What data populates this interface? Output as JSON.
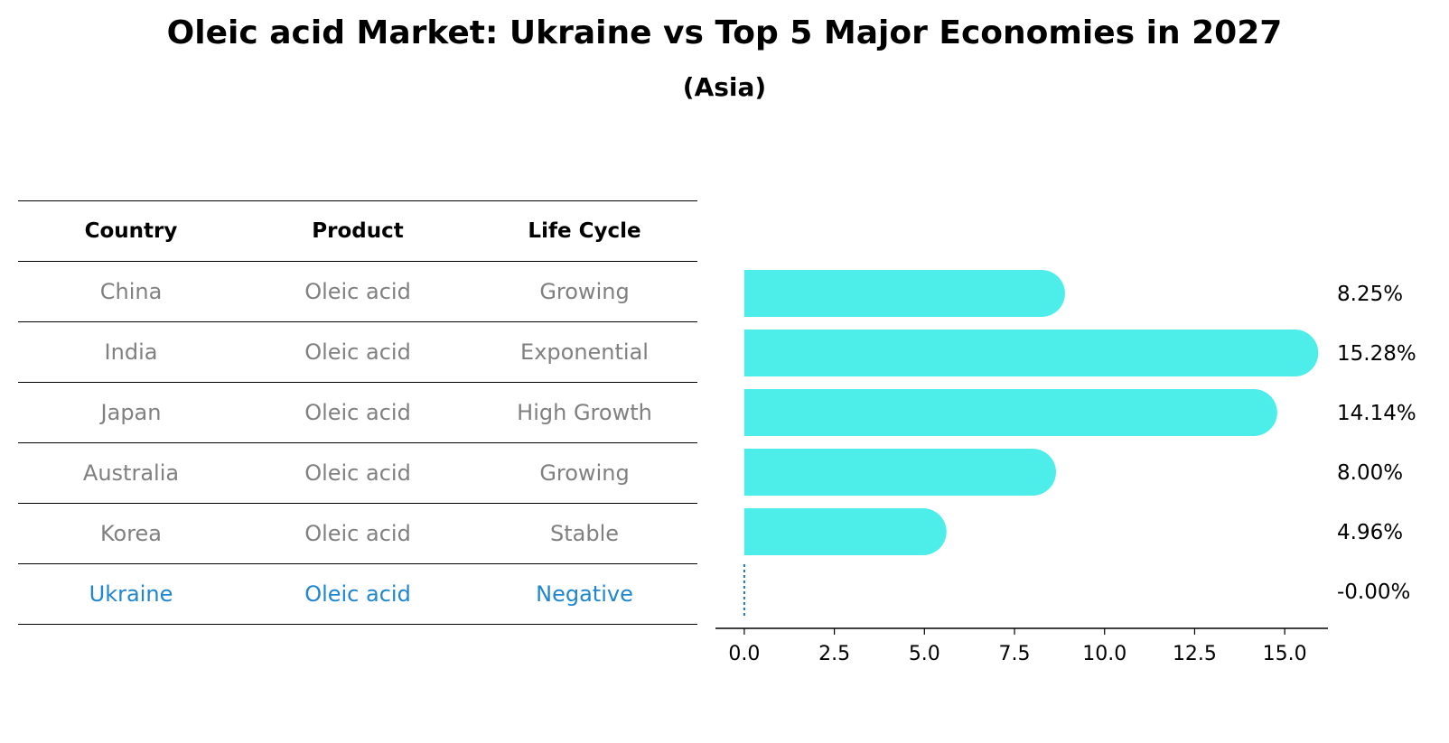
{
  "title": "Oleic acid Market: Ukraine vs Top 5 Major Economies in 2027",
  "subtitle": "(Asia)",
  "table": {
    "headers": [
      "Country",
      "Product",
      "Life Cycle"
    ],
    "rows": [
      [
        "China",
        "Oleic acid",
        "Growing"
      ],
      [
        "India",
        "Oleic acid",
        "Exponential"
      ],
      [
        "Japan",
        "Oleic acid",
        "High Growth"
      ],
      [
        "Australia",
        "Oleic acid",
        "Growing"
      ],
      [
        "Korea",
        "Oleic acid",
        "Stable"
      ],
      [
        "Ukraine",
        "Oleic acid",
        "Negative"
      ]
    ],
    "highlight_color": "#1f86cf",
    "text_color": "#808080"
  },
  "chart_data": {
    "type": "bar",
    "orientation": "horizontal",
    "categories": [
      "China",
      "India",
      "Japan",
      "Australia",
      "Korea",
      "Ukraine"
    ],
    "values": [
      8.25,
      15.28,
      14.14,
      8.0,
      4.96,
      -0.0
    ],
    "value_labels": [
      "8.25%",
      "15.28%",
      "14.14%",
      "8.00%",
      "4.96%",
      "-0.00%"
    ],
    "xlim": [
      -0.8,
      16.2
    ],
    "xticks": [
      0.0,
      2.5,
      5.0,
      7.5,
      10.0,
      12.5,
      15.0
    ],
    "xtick_labels": [
      "0.0",
      "2.5",
      "5.0",
      "7.5",
      "10.0",
      "12.5",
      "15.0"
    ],
    "bar_color": "#4deeea",
    "zero_line_color": "#1f77b4",
    "grid": false
  }
}
